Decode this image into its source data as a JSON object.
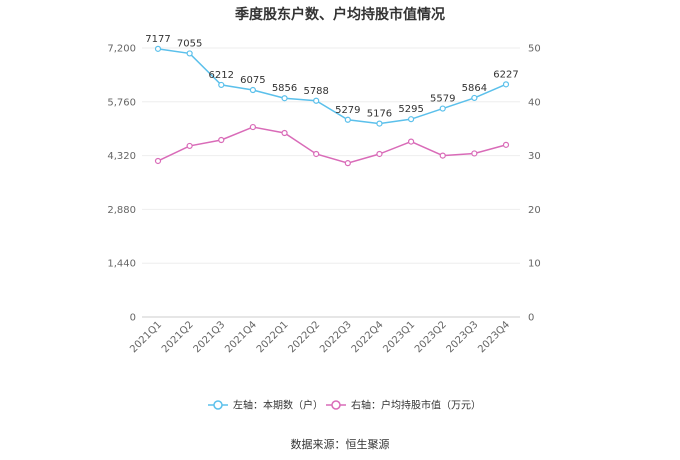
{
  "chart_data": {
    "type": "line",
    "title": "季度股东户数、户均持股市值情况",
    "categories": [
      "2021Q1",
      "2021Q2",
      "2021Q3",
      "2021Q4",
      "2022Q1",
      "2022Q2",
      "2022Q3",
      "2022Q4",
      "2023Q1",
      "2023Q2",
      "2023Q3",
      "2023Q4"
    ],
    "series": [
      {
        "name": "左轴：本期数（户）",
        "axis": "left",
        "color": "#5bc0eb",
        "values": [
          7177,
          7055,
          6212,
          6075,
          5856,
          5788,
          5279,
          5176,
          5295,
          5579,
          5864,
          6227
        ],
        "labels": [
          "7177",
          "7055",
          "6212",
          "6075",
          "5856",
          "5788",
          "5279",
          "5176",
          "5295",
          "5579",
          "5864",
          "6227"
        ]
      },
      {
        "name": "右轴：户均持股市值（万元）",
        "axis": "right",
        "color": "#d96bb8",
        "values": [
          29.0,
          31.8,
          32.9,
          35.3,
          34.2,
          30.3,
          28.6,
          30.3,
          32.6,
          30.0,
          30.4,
          32.0
        ]
      }
    ],
    "left_axis": {
      "ylim": [
        0,
        7200
      ],
      "ticks": [
        "0",
        "1,440",
        "2,880",
        "4,320",
        "5,760",
        "7,200"
      ],
      "tick_values": [
        0,
        1440,
        2880,
        4320,
        5760,
        7200
      ]
    },
    "right_axis": {
      "ylim": [
        0,
        50
      ],
      "ticks": [
        "0",
        "10",
        "20",
        "30",
        "40",
        "50"
      ],
      "tick_values": [
        0,
        10,
        20,
        30,
        40,
        50
      ]
    },
    "legend_position": "bottom",
    "grid": true
  },
  "footer": {
    "source": "数据来源：恒生聚源"
  }
}
